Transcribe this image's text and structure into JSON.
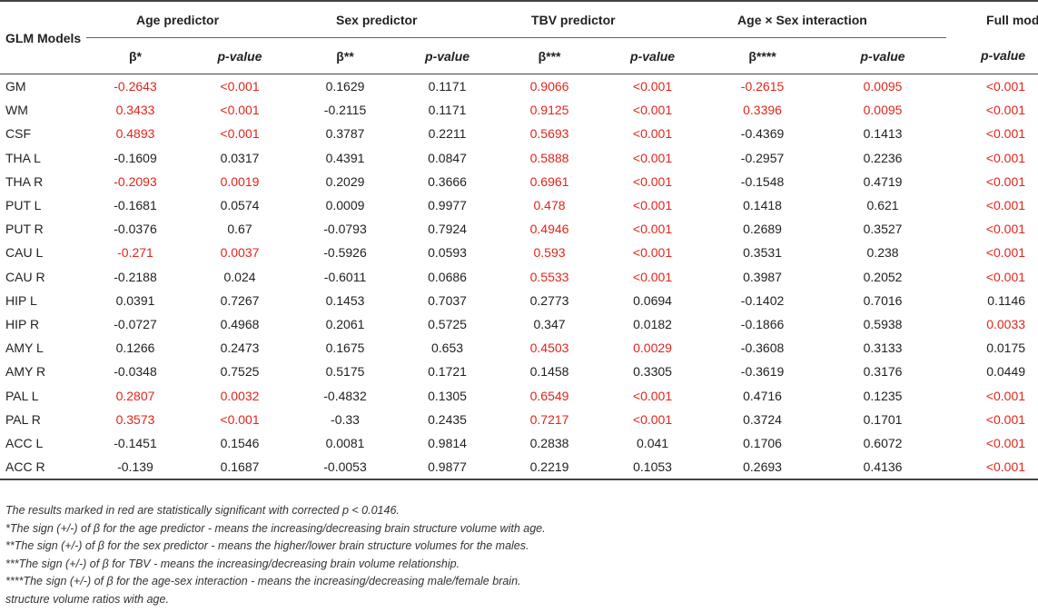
{
  "table": {
    "corner_label": "GLM Models",
    "groups": [
      {
        "label": "Age predictor",
        "beta": "β*",
        "p": "p-value"
      },
      {
        "label": "Sex predictor",
        "beta": "β**",
        "p": "p-value"
      },
      {
        "label": "TBV predictor",
        "beta": "β***",
        "p": "p-value"
      },
      {
        "label": "Age × Sex interaction",
        "beta": "β****",
        "p": "p-value"
      }
    ],
    "full_model": {
      "label": "Full model",
      "p": "p-value"
    },
    "significant_color": "#e1251b",
    "rows": [
      {
        "name": "GM",
        "cells": [
          "-0.2643",
          "<0.001",
          "0.1629",
          "0.1171",
          "0.9066",
          "<0.001",
          "-0.2615",
          "0.0095",
          "<0.001"
        ],
        "sig": [
          1,
          1,
          0,
          0,
          1,
          1,
          1,
          1,
          1
        ]
      },
      {
        "name": "WM",
        "cells": [
          "0.3433",
          "<0.001",
          "-0.2115",
          "0.1171",
          "0.9125",
          "<0.001",
          "0.3396",
          "0.0095",
          "<0.001"
        ],
        "sig": [
          1,
          1,
          0,
          0,
          1,
          1,
          1,
          1,
          1
        ]
      },
      {
        "name": "CSF",
        "cells": [
          "0.4893",
          "<0.001",
          "0.3787",
          "0.2211",
          "0.5693",
          "<0.001",
          "-0.4369",
          "0.1413",
          "<0.001"
        ],
        "sig": [
          1,
          1,
          0,
          0,
          1,
          1,
          0,
          0,
          1
        ]
      },
      {
        "name": "THA L",
        "cells": [
          "-0.1609",
          "0.0317",
          "0.4391",
          "0.0847",
          "0.5888",
          "<0.001",
          "-0.2957",
          "0.2236",
          "<0.001"
        ],
        "sig": [
          0,
          0,
          0,
          0,
          1,
          1,
          0,
          0,
          1
        ]
      },
      {
        "name": "THA R",
        "cells": [
          "-0.2093",
          "0.0019",
          "0.2029",
          "0.3666",
          "0.6961",
          "<0.001",
          "-0.1548",
          "0.4719",
          "<0.001"
        ],
        "sig": [
          1,
          1,
          0,
          0,
          1,
          1,
          0,
          0,
          1
        ]
      },
      {
        "name": "PUT L",
        "cells": [
          "-0.1681",
          "0.0574",
          "0.0009",
          "0.9977",
          "0.478",
          "<0.001",
          "0.1418",
          "0.621",
          "<0.001"
        ],
        "sig": [
          0,
          0,
          0,
          0,
          1,
          1,
          0,
          0,
          1
        ]
      },
      {
        "name": "PUT R",
        "cells": [
          "-0.0376",
          "0.67",
          "-0.0793",
          "0.7924",
          "0.4946",
          "<0.001",
          "0.2689",
          "0.3527",
          "<0.001"
        ],
        "sig": [
          0,
          0,
          0,
          0,
          1,
          1,
          0,
          0,
          1
        ]
      },
      {
        "name": "CAU L",
        "cells": [
          "-0.271",
          "0.0037",
          "-0.5926",
          "0.0593",
          "0.593",
          "<0.001",
          "0.3531",
          "0.238",
          "<0.001"
        ],
        "sig": [
          1,
          1,
          0,
          0,
          1,
          1,
          0,
          0,
          1
        ]
      },
      {
        "name": "CAU R",
        "cells": [
          "-0.2188",
          "0.024",
          "-0.6011",
          "0.0686",
          "0.5533",
          "<0.001",
          "0.3987",
          "0.2052",
          "<0.001"
        ],
        "sig": [
          0,
          0,
          0,
          0,
          1,
          1,
          0,
          0,
          1
        ]
      },
      {
        "name": "HIP L",
        "cells": [
          "0.0391",
          "0.7267",
          "0.1453",
          "0.7037",
          "0.2773",
          "0.0694",
          "-0.1402",
          "0.7016",
          "0.1146"
        ],
        "sig": [
          0,
          0,
          0,
          0,
          0,
          0,
          0,
          0,
          0
        ]
      },
      {
        "name": "HIP R",
        "cells": [
          "-0.0727",
          "0.4968",
          "0.2061",
          "0.5725",
          "0.347",
          "0.0182",
          "-0.1866",
          "0.5938",
          "0.0033"
        ],
        "sig": [
          0,
          0,
          0,
          0,
          0,
          0,
          0,
          0,
          1
        ]
      },
      {
        "name": "AMY L",
        "cells": [
          "0.1266",
          "0.2473",
          "0.1675",
          "0.653",
          "0.4503",
          "0.0029",
          "-0.3608",
          "0.3133",
          "0.0175"
        ],
        "sig": [
          0,
          0,
          0,
          0,
          1,
          1,
          0,
          0,
          0
        ]
      },
      {
        "name": "AMY R",
        "cells": [
          "-0.0348",
          "0.7525",
          "0.5175",
          "0.1721",
          "0.1458",
          "0.3305",
          "-0.3619",
          "0.3176",
          "0.0449"
        ],
        "sig": [
          0,
          0,
          0,
          0,
          0,
          0,
          0,
          0,
          0
        ]
      },
      {
        "name": "PAL L",
        "cells": [
          "0.2807",
          "0.0032",
          "-0.4832",
          "0.1305",
          "0.6549",
          "<0.001",
          "0.4716",
          "0.1235",
          "<0.001"
        ],
        "sig": [
          1,
          1,
          0,
          0,
          1,
          1,
          0,
          0,
          1
        ]
      },
      {
        "name": "PAL R",
        "cells": [
          "0.3573",
          "<0.001",
          "-0.33",
          "0.2435",
          "0.7217",
          "<0.001",
          "0.3724",
          "0.1701",
          "<0.001"
        ],
        "sig": [
          1,
          1,
          0,
          0,
          1,
          1,
          0,
          0,
          1
        ]
      },
      {
        "name": "ACC L",
        "cells": [
          "-0.1451",
          "0.1546",
          "0.0081",
          "0.9814",
          "0.2838",
          "0.041",
          "0.1706",
          "0.6072",
          "<0.001"
        ],
        "sig": [
          0,
          0,
          0,
          0,
          0,
          0,
          0,
          0,
          1
        ]
      },
      {
        "name": "ACC R",
        "cells": [
          "-0.139",
          "0.1687",
          "-0.0053",
          "0.9877",
          "0.2219",
          "0.1053",
          "0.2693",
          "0.4136",
          "<0.001"
        ],
        "sig": [
          0,
          0,
          0,
          0,
          0,
          0,
          0,
          0,
          1
        ]
      }
    ]
  },
  "notes": [
    "The results marked in red are statistically significant with corrected p < 0.0146.",
    "*The sign (+/-) of β for the age predictor - means the increasing/decreasing brain structure volume with age.",
    "**The sign (+/-) of β for the sex predictor - means the higher/lower brain structure volumes for the males.",
    "***The sign (+/-) of β for TBV - means the increasing/decreasing brain volume relationship.",
    "****The sign (+/-) of β for the age-sex interaction - means the increasing/decreasing male/female brain.",
    "structure volume ratios with age."
  ]
}
